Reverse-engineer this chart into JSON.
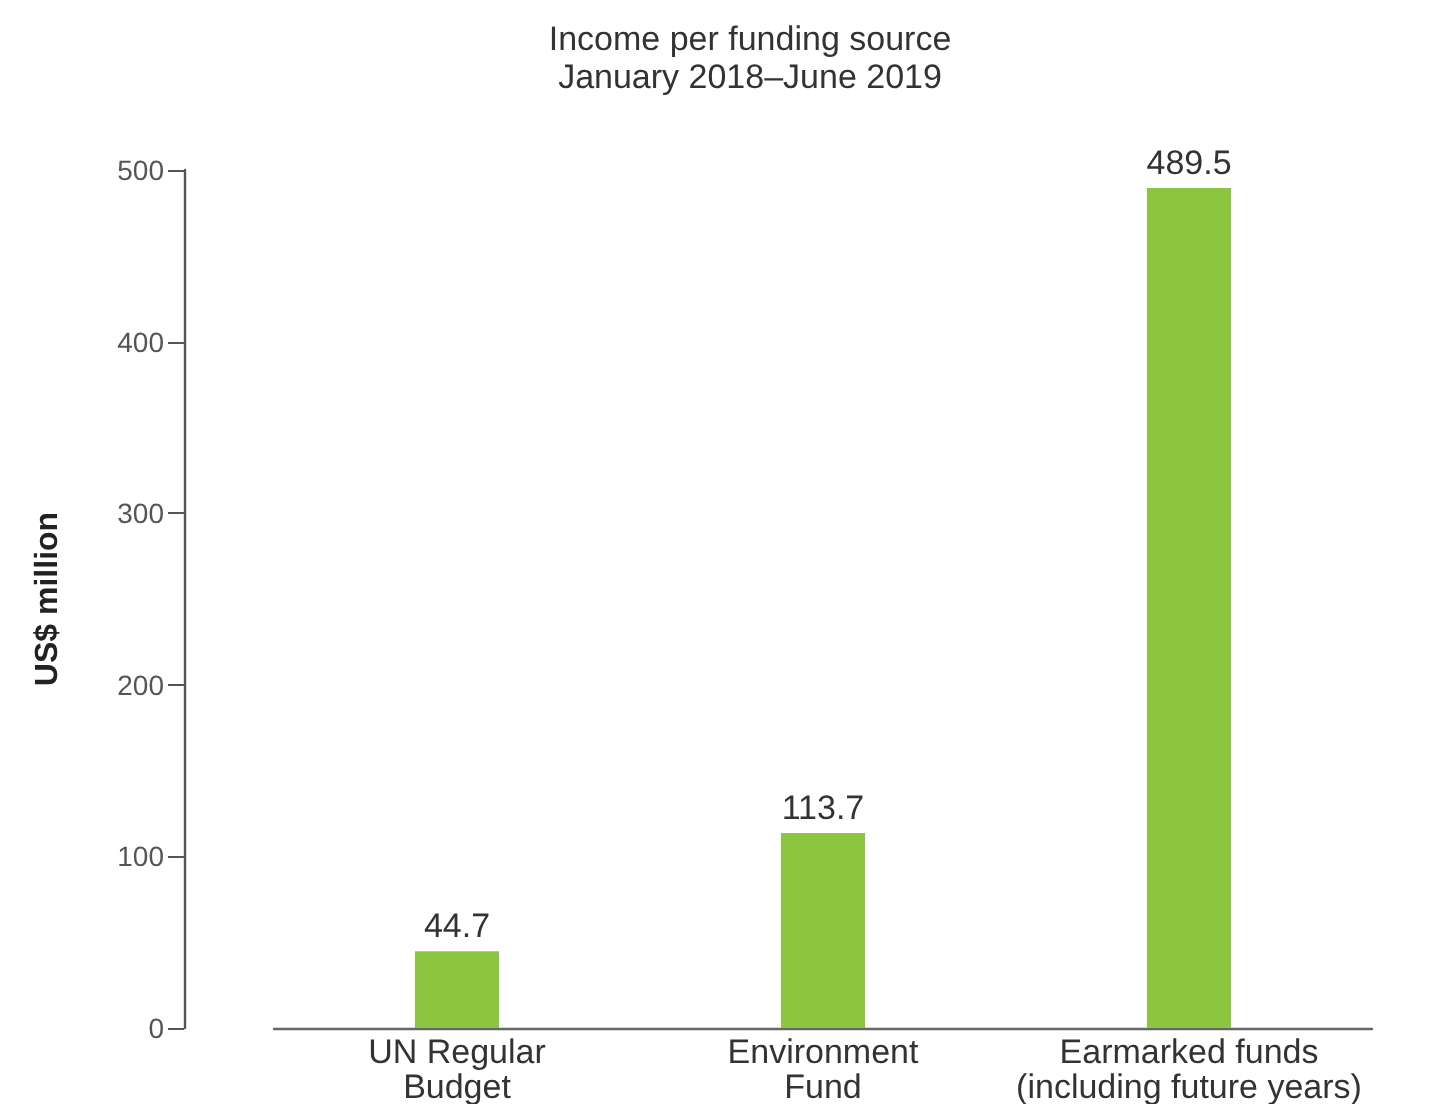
{
  "chart_data": {
    "type": "bar",
    "title": "Income per funding source",
    "subtitle": "January 2018–June 2019",
    "ylabel": "US$ million",
    "categories": [
      "UN Regular\nBudget",
      "Environment\nFund",
      "Earmarked funds\n(including future years)"
    ],
    "values": [
      44.7,
      113.7,
      489.5
    ],
    "color": "#8cc540",
    "ylim": [
      0,
      500
    ],
    "yticks": [
      0,
      100,
      200,
      300,
      400,
      500
    ],
    "data_labels": true,
    "grid": false
  }
}
